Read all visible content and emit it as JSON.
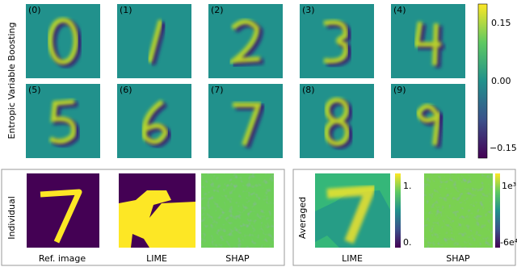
{
  "top_panel": {
    "ylabel": "Entropic Variable Boosting",
    "panels": [
      "(0)",
      "(1)",
      "(2)",
      "(3)",
      "(4)",
      "(5)",
      "(6)",
      "(7)",
      "(8)",
      "(9)"
    ],
    "colorbar_ticks": [
      "0.15",
      "0.00",
      "−0.15"
    ]
  },
  "individual": {
    "ylabel": "Individual",
    "labels": [
      "Ref. image",
      "LIME",
      "SHAP"
    ]
  },
  "averaged": {
    "ylabel": "Averaged",
    "labels": [
      "LIME",
      "SHAP"
    ],
    "lime_colorbar_ticks": [
      "1.",
      "0."
    ],
    "shap_colorbar_ticks": [
      "1e³",
      "-6e⁴"
    ]
  }
}
